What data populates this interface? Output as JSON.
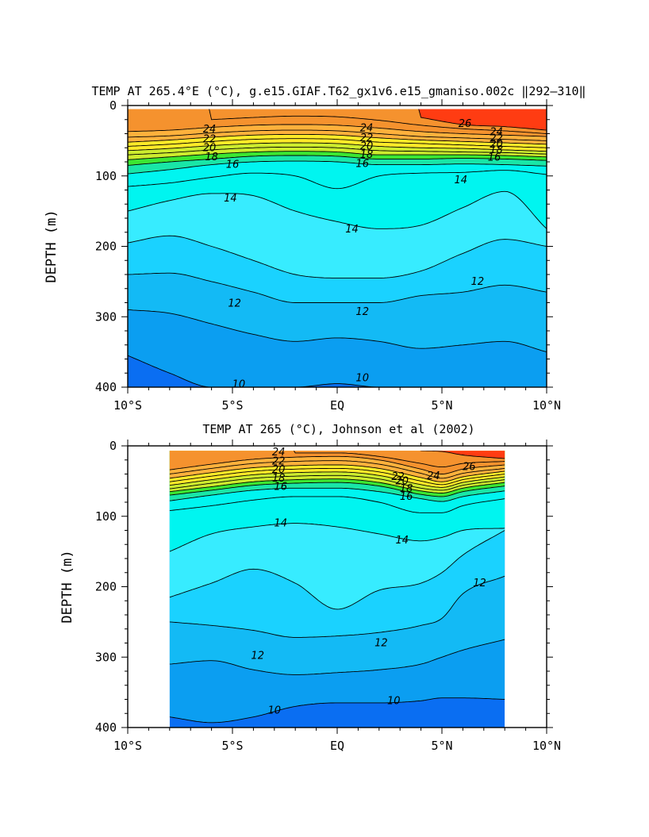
{
  "chart_data": [
    {
      "type": "contour",
      "title": "TEMP AT 265.4°E (°C), g.e15.GIAF.T62_gx1v6.e15_gmaniso.002c ‖292–310‖",
      "xlabel": "",
      "ylabel": "DEPTH (m)",
      "xlim": [
        -10,
        10
      ],
      "ylim": [
        400,
        0
      ],
      "x_ticks": [
        {
          "value": -10,
          "label": "10°S"
        },
        {
          "value": -5,
          "label": "5°S"
        },
        {
          "value": 0,
          "label": "EQ"
        },
        {
          "value": 5,
          "label": "5°N"
        },
        {
          "value": 10,
          "label": "10°N"
        }
      ],
      "y_ticks": [
        {
          "value": 0,
          "label": "0"
        },
        {
          "value": 100,
          "label": "100"
        },
        {
          "value": 200,
          "label": "200"
        },
        {
          "value": 300,
          "label": "300"
        },
        {
          "value": 400,
          "label": "400"
        }
      ],
      "data_xlim": [
        -10,
        10
      ],
      "data_top_depth": 5,
      "x_nodes": [
        -10,
        -8,
        -6,
        -4,
        -2,
        0,
        2,
        4,
        6,
        8,
        10
      ],
      "isotherms": [
        {
          "value": 26,
          "depths": [
            null,
            null,
            null,
            null,
            null,
            null,
            null,
            17,
            27,
            30,
            35
          ]
        },
        {
          "value": 25,
          "depths": [
            null,
            null,
            20,
            17,
            15,
            16,
            21,
            28,
            33,
            36,
            40
          ]
        },
        {
          "value": 24,
          "depths": [
            37,
            35,
            31,
            28,
            27,
            28,
            32,
            37,
            40,
            42,
            44
          ]
        },
        {
          "value": 23,
          "depths": [
            45,
            43,
            39,
            36,
            35,
            36,
            40,
            44,
            46,
            48,
            50
          ]
        },
        {
          "value": 22,
          "depths": [
            52,
            49,
            45,
            42,
            41,
            42,
            46,
            49,
            51,
            53,
            55
          ]
        },
        {
          "value": 21,
          "depths": [
            58,
            55,
            51,
            48,
            47,
            48,
            52,
            54,
            56,
            58,
            60
          ]
        },
        {
          "value": 20,
          "depths": [
            64,
            61,
            57,
            54,
            53,
            54,
            58,
            60,
            61,
            63,
            65
          ]
        },
        {
          "value": 19,
          "depths": [
            70,
            67,
            63,
            60,
            59,
            60,
            64,
            65,
            66,
            67,
            69
          ]
        },
        {
          "value": 18,
          "depths": [
            77,
            73,
            69,
            66,
            65,
            66,
            70,
            70,
            70,
            71,
            73
          ]
        },
        {
          "value": 17,
          "depths": [
            85,
            80,
            76,
            72,
            71,
            72,
            76,
            76,
            75,
            76,
            78
          ]
        },
        {
          "value": 16,
          "depths": [
            97,
            91,
            84,
            80,
            79,
            80,
            84,
            84,
            83,
            84,
            86
          ]
        },
        {
          "value": 15,
          "depths": [
            115,
            110,
            102,
            96,
            100,
            118,
            100,
            96,
            95,
            92,
            98
          ]
        },
        {
          "value": 14,
          "depths": [
            150,
            135,
            125,
            128,
            150,
            165,
            175,
            170,
            145,
            122,
            175
          ]
        },
        {
          "value": 13,
          "depths": [
            195,
            185,
            200,
            220,
            240,
            245,
            245,
            235,
            210,
            190,
            200
          ]
        },
        {
          "value": 12,
          "depths": [
            240,
            238,
            250,
            265,
            280,
            280,
            280,
            270,
            265,
            255,
            265
          ]
        },
        {
          "value": 11,
          "depths": [
            290,
            295,
            310,
            325,
            335,
            330,
            335,
            345,
            340,
            335,
            350
          ]
        },
        {
          "value": 10,
          "depths": [
            355,
            380,
            400,
            400,
            400,
            395,
            400,
            400,
            400,
            400,
            400
          ]
        }
      ],
      "contour_labels": [
        {
          "value": "24",
          "x": -6.1,
          "y": 34
        },
        {
          "value": "22",
          "x": -6.1,
          "y": 48
        },
        {
          "value": "20",
          "x": -6.1,
          "y": 60
        },
        {
          "value": "18",
          "x": -6.0,
          "y": 73
        },
        {
          "value": "16",
          "x": -5.0,
          "y": 84
        },
        {
          "value": "24",
          "x": 1.4,
          "y": 32
        },
        {
          "value": "22",
          "x": 1.4,
          "y": 46
        },
        {
          "value": "20",
          "x": 1.4,
          "y": 58
        },
        {
          "value": "18",
          "x": 1.4,
          "y": 70
        },
        {
          "value": "16",
          "x": 1.2,
          "y": 83
        },
        {
          "value": "26",
          "x": 6.1,
          "y": 26
        },
        {
          "value": "24",
          "x": 7.6,
          "y": 38
        },
        {
          "value": "22",
          "x": 7.6,
          "y": 47
        },
        {
          "value": "20",
          "x": 7.6,
          "y": 55
        },
        {
          "value": "18",
          "x": 7.6,
          "y": 63
        },
        {
          "value": "16",
          "x": 7.5,
          "y": 74
        },
        {
          "value": "14",
          "x": 5.9,
          "y": 106
        },
        {
          "value": "14",
          "x": -5.1,
          "y": 132
        },
        {
          "value": "14",
          "x": 0.7,
          "y": 176
        },
        {
          "value": "12",
          "x": 6.7,
          "y": 250
        },
        {
          "value": "12",
          "x": -4.9,
          "y": 281
        },
        {
          "value": "12",
          "x": 1.2,
          "y": 293
        },
        {
          "value": "10",
          "x": -4.7,
          "y": 396
        },
        {
          "value": "10",
          "x": 1.2,
          "y": 387
        }
      ]
    },
    {
      "type": "contour",
      "title": "TEMP AT 265 (°C), Johnson et al (2002)",
      "xlabel": "",
      "ylabel": "DEPTH (m)",
      "xlim": [
        -10,
        10
      ],
      "ylim": [
        400,
        0
      ],
      "x_ticks": [
        {
          "value": -10,
          "label": "10°S"
        },
        {
          "value": -5,
          "label": "5°S"
        },
        {
          "value": 0,
          "label": "EQ"
        },
        {
          "value": 5,
          "label": "5°N"
        },
        {
          "value": 10,
          "label": "10°N"
        }
      ],
      "y_ticks": [
        {
          "value": 0,
          "label": "0"
        },
        {
          "value": 100,
          "label": "100"
        },
        {
          "value": 200,
          "label": "200"
        },
        {
          "value": 300,
          "label": "300"
        },
        {
          "value": 400,
          "label": "400"
        }
      ],
      "data_xlim": [
        -8,
        8
      ],
      "data_top_depth": 7,
      "x_nodes": [
        -8,
        -6,
        -4,
        -2,
        0,
        2,
        4,
        5,
        6,
        8
      ],
      "isotherms": [
        {
          "value": 26,
          "depths": [
            null,
            null,
            null,
            null,
            null,
            null,
            7,
            8,
            13,
            18
          ]
        },
        {
          "value": 25,
          "depths": [
            null,
            null,
            null,
            10,
            10,
            15,
            25,
            30,
            25,
            22
          ]
        },
        {
          "value": 24,
          "depths": [
            34,
            26,
            19,
            16,
            15,
            20,
            33,
            40,
            33,
            27
          ]
        },
        {
          "value": 23,
          "depths": [
            40,
            32,
            25,
            22,
            21,
            26,
            39,
            46,
            39,
            32
          ]
        },
        {
          "value": 22,
          "depths": [
            46,
            38,
            31,
            28,
            27,
            32,
            45,
            51,
            44,
            36
          ]
        },
        {
          "value": 21,
          "depths": [
            51,
            43,
            36,
            33,
            32,
            37,
            50,
            55,
            48,
            40
          ]
        },
        {
          "value": 20,
          "depths": [
            56,
            48,
            41,
            38,
            37,
            42,
            55,
            59,
            52,
            44
          ]
        },
        {
          "value": 19,
          "depths": [
            61,
            53,
            46,
            43,
            42,
            47,
            60,
            63,
            56,
            48
          ]
        },
        {
          "value": 18,
          "depths": [
            65,
            58,
            51,
            48,
            47,
            52,
            64,
            67,
            60,
            52
          ]
        },
        {
          "value": 17,
          "depths": [
            70,
            63,
            56,
            53,
            52,
            57,
            69,
            72,
            65,
            57
          ]
        },
        {
          "value": 16,
          "depths": [
            78,
            70,
            63,
            60,
            60,
            65,
            75,
            79,
            72,
            64
          ]
        },
        {
          "value": 15,
          "depths": [
            92,
            85,
            77,
            72,
            72,
            80,
            95,
            95,
            85,
            75
          ]
        },
        {
          "value": 14,
          "depths": [
            150,
            125,
            115,
            110,
            115,
            125,
            135,
            130,
            120,
            117
          ]
        },
        {
          "value": 13,
          "depths": [
            215,
            195,
            175,
            195,
            232,
            205,
            195,
            180,
            155,
            120
          ]
        },
        {
          "value": 12,
          "depths": [
            250,
            255,
            262,
            272,
            270,
            265,
            255,
            245,
            210,
            185
          ]
        },
        {
          "value": 11,
          "depths": [
            310,
            305,
            318,
            325,
            322,
            318,
            310,
            300,
            290,
            275
          ]
        },
        {
          "value": 10,
          "depths": [
            385,
            393,
            385,
            370,
            365,
            365,
            362,
            358,
            358,
            360
          ]
        }
      ],
      "contour_labels": [
        {
          "value": "24",
          "x": -2.8,
          "y": 9
        },
        {
          "value": "22",
          "x": -2.8,
          "y": 22
        },
        {
          "value": "20",
          "x": -2.8,
          "y": 34
        },
        {
          "value": "18",
          "x": -2.8,
          "y": 46
        },
        {
          "value": "16",
          "x": -2.7,
          "y": 58
        },
        {
          "value": "20",
          "x": 3.1,
          "y": 50
        },
        {
          "value": "22",
          "x": 2.9,
          "y": 44
        },
        {
          "value": "24",
          "x": 4.6,
          "y": 43
        },
        {
          "value": "18",
          "x": 3.3,
          "y": 61
        },
        {
          "value": "16",
          "x": 3.3,
          "y": 72
        },
        {
          "value": "26",
          "x": 6.3,
          "y": 30
        },
        {
          "value": "14",
          "x": -2.7,
          "y": 110
        },
        {
          "value": "14",
          "x": 3.1,
          "y": 134
        },
        {
          "value": "12",
          "x": 6.8,
          "y": 195
        },
        {
          "value": "12",
          "x": 2.1,
          "y": 280
        },
        {
          "value": "12",
          "x": -3.8,
          "y": 298
        },
        {
          "value": "10",
          "x": -3.0,
          "y": 376
        },
        {
          "value": "10",
          "x": 2.7,
          "y": 362
        }
      ]
    }
  ],
  "colors": {
    "t26": "#ff3c12",
    "t24": "#f5922e",
    "t22": "#ffb13c",
    "t20": "#ffea28",
    "t18": "#cdec2e",
    "t17": "#3ce632",
    "t16": "#19e6a7",
    "t14": "#00f5f0",
    "t13": "#37ecff",
    "t12": "#1ad2ff",
    "t11": "#13baf5",
    "t10": "#0b9ef1",
    "tlow": "#0a6ef2"
  }
}
